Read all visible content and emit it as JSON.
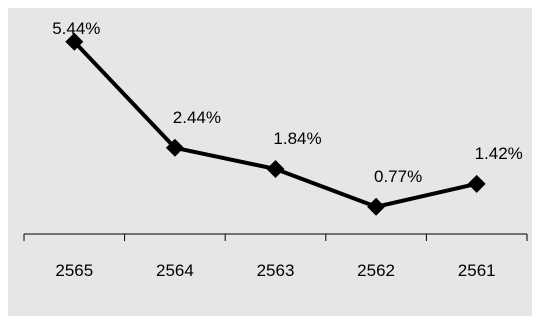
{
  "chart_data": {
    "type": "line",
    "categories": [
      "2565",
      "2564",
      "2563",
      "2562",
      "2561"
    ],
    "values": [
      5.44,
      2.44,
      1.84,
      0.77,
      1.42
    ],
    "data_labels": [
      "5.44%",
      "2.44%",
      "1.84%",
      "0.77%",
      "1.42%"
    ],
    "title": "",
    "xlabel": "",
    "ylabel": "",
    "ylim": [
      0,
      6
    ],
    "grid": false,
    "legend": "none",
    "colors": {
      "background": "#e6e6e6",
      "line": "#000000",
      "marker": "#000000"
    },
    "marker": "diamond"
  }
}
